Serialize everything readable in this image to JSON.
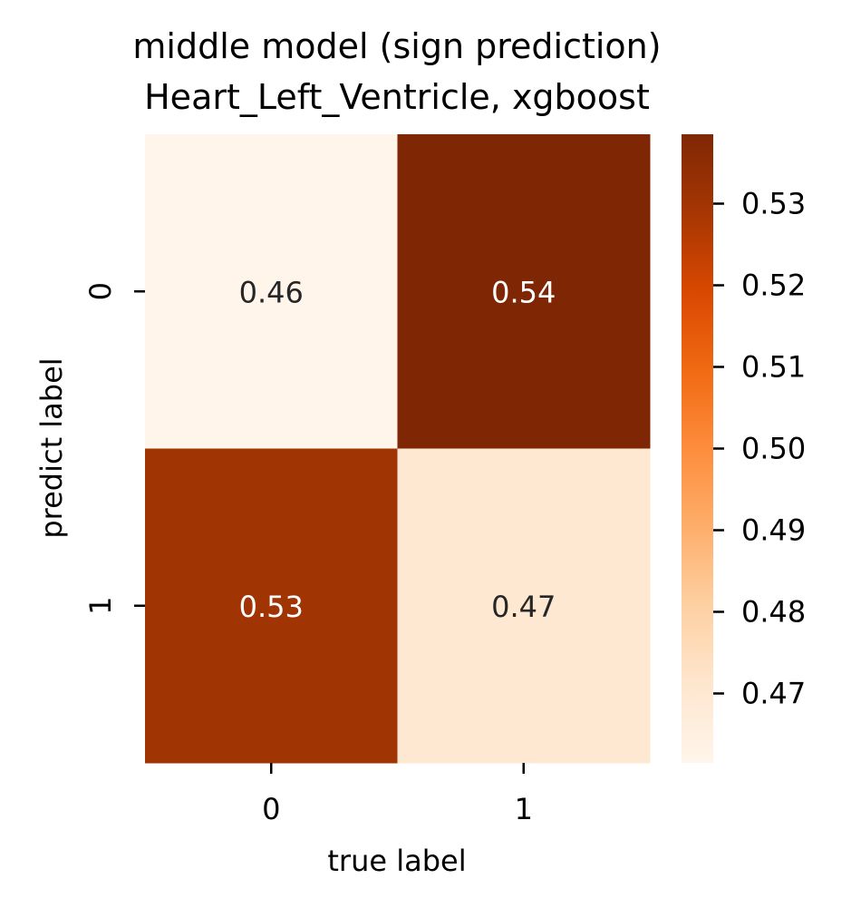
{
  "chart_data": {
    "type": "heatmap",
    "title": [
      "middle model (sign prediction)",
      "Heart_Left_Ventricle, xgboost"
    ],
    "xlabel": "true label",
    "ylabel": "predict label",
    "x_categories": [
      "0",
      "1"
    ],
    "y_categories": [
      "0",
      "1"
    ],
    "values": [
      [
        0.46,
        0.54
      ],
      [
        0.53,
        0.47
      ]
    ],
    "cell_labels": [
      [
        "0.46",
        "0.54"
      ],
      [
        "0.53",
        "0.47"
      ]
    ],
    "colormap": "Oranges",
    "colormap_stops": [
      "#fff5eb",
      "#fee6ce",
      "#fdd0a2",
      "#fdae6b",
      "#fd8d3c",
      "#f16913",
      "#d94801",
      "#a63603",
      "#7f2704"
    ],
    "color_range": [
      0.4615,
      0.5385
    ],
    "colorbar_ticks": [
      0.47,
      0.48,
      0.49,
      0.5,
      0.51,
      0.52,
      0.53
    ],
    "colorbar_tick_labels": [
      "0.47",
      "0.48",
      "0.49",
      "0.50",
      "0.51",
      "0.52",
      "0.53"
    ],
    "text_colors": {
      "dark": "#262626",
      "light": "#ffffff"
    }
  }
}
